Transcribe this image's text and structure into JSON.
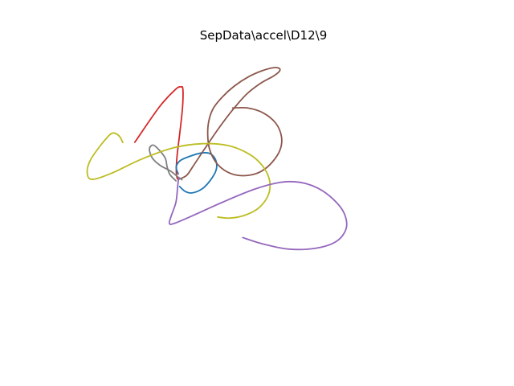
{
  "chart_data": {
    "type": "line",
    "title": "SepData\\accel\\D12\\9",
    "xlabel": "",
    "ylabel": "",
    "axes_visible": false,
    "grid": false,
    "legend": "none",
    "xlim": [
      0,
      1
    ],
    "ylim": [
      0,
      1
    ],
    "series": [
      {
        "color": "#d62728",
        "points": [
          [
            0.1771,
            0.6778
          ],
          [
            0.2391,
            0.7974
          ],
          [
            0.2792,
            0.8557
          ],
          [
            0.2922,
            0.8645
          ],
          [
            0.2978,
            0.8567
          ],
          [
            0.2968,
            0.7929
          ],
          [
            0.29,
            0.7085
          ],
          [
            0.2831,
            0.6303
          ],
          [
            0.2813,
            0.5779
          ],
          [
            0.2838,
            0.5556
          ],
          [
            0.2879,
            0.5532
          ]
        ]
      },
      {
        "color": "#1f77b4",
        "points": [
          [
            0.2862,
            0.571
          ],
          [
            0.281,
            0.595
          ],
          [
            0.2917,
            0.6165
          ],
          [
            0.3158,
            0.6307
          ],
          [
            0.3433,
            0.6414
          ],
          [
            0.3657,
            0.6395
          ],
          [
            0.3804,
            0.6174
          ],
          [
            0.3812,
            0.584
          ],
          [
            0.3657,
            0.5476
          ],
          [
            0.3451,
            0.5199
          ],
          [
            0.3209,
            0.5071
          ],
          [
            0.3037,
            0.512
          ],
          [
            0.2896,
            0.5286
          ]
        ]
      },
      {
        "color": "#8c564b",
        "points": [
          [
            0.2888,
            0.5544
          ],
          [
            0.2969,
            0.5579
          ],
          [
            0.3089,
            0.5684
          ],
          [
            0.3252,
            0.6007
          ],
          [
            0.3519,
            0.6545
          ],
          [
            0.388,
            0.7252
          ],
          [
            0.4229,
            0.787
          ],
          [
            0.4582,
            0.8404
          ],
          [
            0.4934,
            0.877
          ],
          [
            0.5247,
            0.9005
          ],
          [
            0.5399,
            0.9166
          ],
          [
            0.5398,
            0.9267
          ],
          [
            0.5247,
            0.9289
          ],
          [
            0.4972,
            0.919
          ],
          [
            0.4627,
            0.8985
          ],
          [
            0.4273,
            0.8675
          ],
          [
            0.3966,
            0.83
          ],
          [
            0.3734,
            0.7903
          ],
          [
            0.3627,
            0.7481
          ],
          [
            0.3602,
            0.7017
          ],
          [
            0.3646,
            0.6556
          ],
          [
            0.3796,
            0.6125
          ],
          [
            0.4022,
            0.5834
          ],
          [
            0.431,
            0.5673
          ],
          [
            0.4629,
            0.5664
          ],
          [
            0.494,
            0.5795
          ],
          [
            0.5217,
            0.6101
          ],
          [
            0.5421,
            0.6534
          ],
          [
            0.5452,
            0.6976
          ],
          [
            0.531,
            0.7419
          ],
          [
            0.5,
            0.7763
          ],
          [
            0.4616,
            0.793
          ],
          [
            0.4228,
            0.7934
          ]
        ]
      },
      {
        "color": "#7f7f7f",
        "points": [
          [
            0.2955,
            0.5514
          ],
          [
            0.2855,
            0.5609
          ],
          [
            0.2659,
            0.5815
          ],
          [
            0.2406,
            0.6
          ],
          [
            0.2209,
            0.6249
          ],
          [
            0.2138,
            0.6555
          ],
          [
            0.2232,
            0.6684
          ],
          [
            0.2375,
            0.6527
          ],
          [
            0.2536,
            0.624
          ],
          [
            0.2582,
            0.5951
          ],
          [
            0.2652,
            0.5691
          ],
          [
            0.2805,
            0.5474
          ]
        ]
      },
      {
        "color": "#bcbd22",
        "points": [
          [
            0.1469,
            0.6771
          ],
          [
            0.1382,
            0.6984
          ],
          [
            0.1221,
            0.7091
          ],
          [
            0.108,
            0.6942
          ],
          [
            0.0838,
            0.6542
          ],
          [
            0.0647,
            0.6151
          ],
          [
            0.0576,
            0.5773
          ],
          [
            0.0693,
            0.5527
          ],
          [
            0.1204,
            0.5744
          ],
          [
            0.1933,
            0.6204
          ],
          [
            0.2754,
            0.6594
          ],
          [
            0.3464,
            0.6729
          ],
          [
            0.4113,
            0.6667
          ],
          [
            0.4635,
            0.6384
          ],
          [
            0.4965,
            0.6004
          ],
          [
            0.5151,
            0.5513
          ],
          [
            0.5127,
            0.5019
          ],
          [
            0.4891,
            0.4575
          ],
          [
            0.4542,
            0.4322
          ],
          [
            0.4163,
            0.4222
          ],
          [
            0.3853,
            0.4257
          ]
        ]
      },
      {
        "color": "#9467bd",
        "points": [
          [
            0.2874,
            0.5582
          ],
          [
            0.2849,
            0.5319
          ],
          [
            0.2805,
            0.4765
          ],
          [
            0.2688,
            0.4305
          ],
          [
            0.2638,
            0.4045
          ],
          [
            0.2756,
            0.4041
          ],
          [
            0.32,
            0.429
          ],
          [
            0.3978,
            0.476
          ],
          [
            0.4762,
            0.5189
          ],
          [
            0.5407,
            0.5423
          ],
          [
            0.5895,
            0.5432
          ],
          [
            0.636,
            0.5236
          ],
          [
            0.6757,
            0.4853
          ],
          [
            0.7028,
            0.4381
          ],
          [
            0.7076,
            0.3864
          ],
          [
            0.682,
            0.3428
          ],
          [
            0.6306,
            0.3204
          ],
          [
            0.5638,
            0.3176
          ],
          [
            0.4996,
            0.3348
          ],
          [
            0.4481,
            0.3565
          ]
        ]
      }
    ]
  }
}
